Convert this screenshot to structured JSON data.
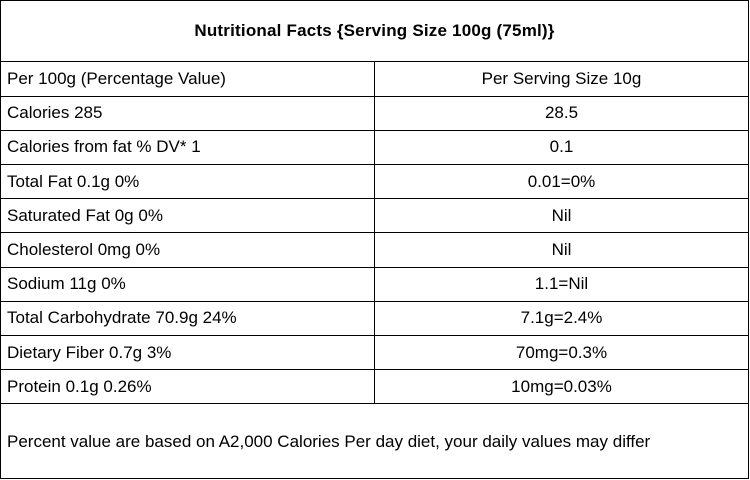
{
  "title": "Nutritional Facts {Serving Size 100g (75ml)}",
  "rows": [
    {
      "left": "Per 100g (Percentage Value)",
      "right": "Per Serving Size 10g"
    },
    {
      "left": "Calories 285",
      "right": "28.5"
    },
    {
      "left": "Calories from fat % DV* 1",
      "right": "0.1"
    },
    {
      "left": "Total Fat 0.1g 0%",
      "right": "0.01=0%"
    },
    {
      "left": "Saturated Fat 0g 0%",
      "right": "Nil"
    },
    {
      "left": "Cholesterol 0mg 0%",
      "right": "Nil"
    },
    {
      "left": "Sodium 11g 0%",
      "right": "1.1=Nil"
    },
    {
      "left": "Total Carbohydrate 70.9g 24%",
      "right": "7.1g=2.4%"
    },
    {
      "left": "Dietary Fiber 0.7g 3%",
      "right": "70mg=0.3%"
    },
    {
      "left": "Protein 0.1g 0.26%",
      "right": "10mg=0.03%"
    }
  ],
  "footer": "Percent value are based on A2,000 Calories Per day diet, your daily values may differ"
}
